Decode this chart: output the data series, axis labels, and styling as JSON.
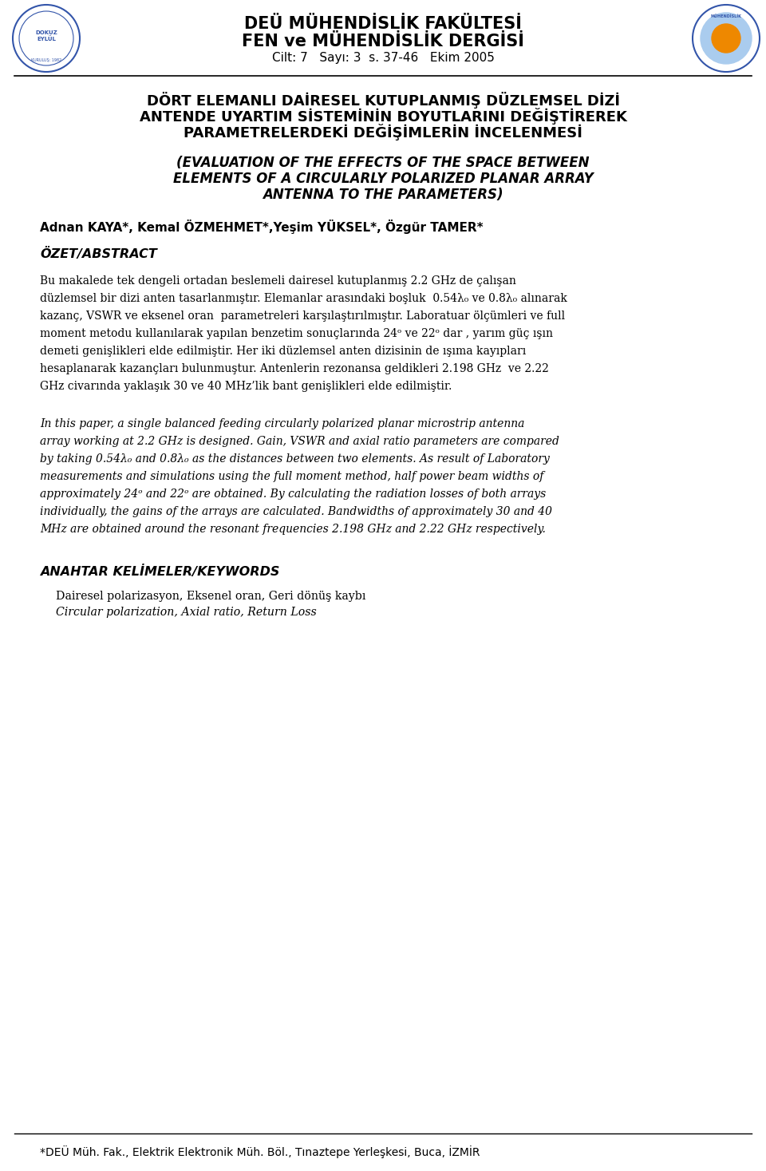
{
  "bg_color": "#ffffff",
  "page_width": 9.6,
  "page_height": 14.67,
  "header_line1": "DEÜ MÜHENDİSLİK FAKÜLTESİ",
  "header_line2": "FEN ve MÜHENDİSLİK DERGİSİ",
  "header_line3": "Cilt: 7   Sayı: 3  s. 37-46   Ekim 2005",
  "title_turkish_line1": "DÖRT ELEMANLI DAİRESEL KUTUPLANMIŞ DÜZLEMSEL DİZİ",
  "title_turkish_line2": "ANTENDE UYARTIM SİSTEMİNİN BOYUTLARINI DEĞİŞTİREREK",
  "title_turkish_line3": "PARAMETRELERDEKİ DEĞİŞİMLERİN İNCELENMESİ",
  "title_english_line1": "(EVALUATION OF THE EFFECTS OF THE SPACE BETWEEN",
  "title_english_line2": "ELEMENTS OF A CIRCULARLY POLARIZED PLANAR ARRAY",
  "title_english_line3": "ANTENNA TO THE PARAMETERS)",
  "authors": "Adnan KAYA*, Kemal ÖZMEHMET*,Yeşim YÜKSEL*, Özgür TAMER*",
  "section_ozet": "ÖZET/ABSTRACT",
  "tr_abstract_lines": [
    "Bu makalede tek dengeli ortadan beslemeli dairesel kutuplanmış 2.2 GHz de çalışan",
    "düzlemsel bir dizi anten tasarlanmıştır. Elemanlar arasındaki boşluk  0.54λ₀ ve 0.8λ₀ alınarak",
    "kazanç, VSWR ve eksenel oran  parametreleri karşılaştırılmıştır. Laboratuar ölçümleri ve full",
    "moment metodu kullanılarak yapılan benzetim sonuçlarında 24ᵒ ve 22ᵒ dar , yarım güç ışın",
    "demeti genişlikleri elde edilmiştir. Her iki düzlemsel anten dizisinin de ışıma kayıpları",
    "hesaplanarak kazançları bulunmuştur. Antenlerin rezonansa geldikleri 2.198 GHz  ve 2.22",
    "GHz civarında yaklaşık 30 ve 40 MHz’lik bant genişlikleri elde edilmiştir."
  ],
  "en_abstract_lines": [
    "In this paper, a single balanced feeding circularly polarized planar microstrip antenna",
    "array working at 2.2 GHz is designed. Gain, VSWR and axial ratio parameters are compared",
    "by taking 0.54λ₀ and 0.8λ₀ as the distances between two elements. As result of Laboratory",
    "measurements and simulations using the full moment method, half power beam widths of",
    "approximately 24ᵒ and 22ᵒ are obtained. By calculating the radiation losses of both arrays",
    "individually, the gains of the arrays are calculated. Bandwidths of approximately 30 and 40",
    "MHz are obtained around the resonant frequencies 2.198 GHz and 2.22 GHz respectively."
  ],
  "section_keywords": "ANAHTAR KELİMELER/KEYWORDS",
  "keywords_turkish": "Dairesel polarizasyon, Eksenel oran, Geri dönüş kaybı",
  "keywords_english": "Circular polarization, Axial ratio, Return Loss",
  "footer": "*DEÜ Müh. Fak., Elektrik Elektronik Müh. Böl., Tınaztepe Yerleşkesi, Buca, İZMİR",
  "header_fontsize": 15,
  "header_sub_fontsize": 11,
  "title_tr_fontsize": 13,
  "title_en_fontsize": 12,
  "authors_fontsize": 11,
  "section_fontsize": 11.5,
  "body_fontsize": 10,
  "footer_fontsize": 10
}
